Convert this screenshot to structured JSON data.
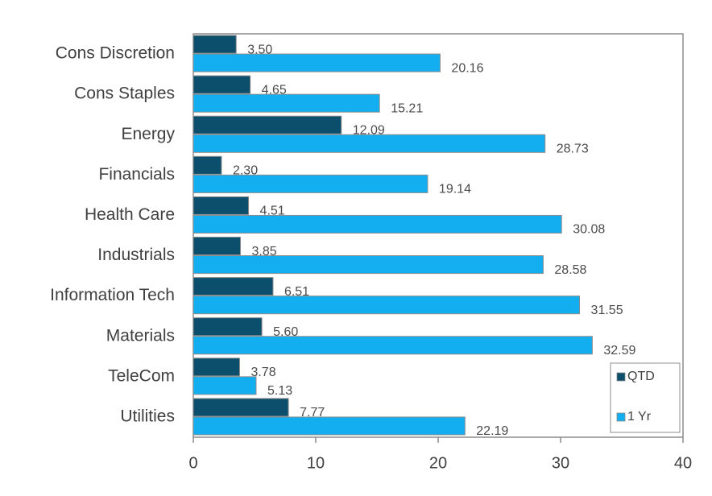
{
  "chart_data": {
    "type": "bar",
    "orientation": "horizontal",
    "categories": [
      "Cons Discretion",
      "Cons Staples",
      "Energy",
      "Financials",
      "Health Care",
      "Industrials",
      "Information Tech",
      "Materials",
      "TeleCom",
      "Utilities"
    ],
    "series": [
      {
        "name": "QTD",
        "color": "#0b4f6c",
        "values": [
          3.5,
          4.65,
          12.09,
          2.3,
          4.51,
          3.85,
          6.51,
          5.6,
          3.78,
          7.77
        ],
        "value_labels": [
          "3.50",
          "4.65",
          "12.09",
          "2.30",
          "4.51",
          "3.85",
          "6.51",
          "5.60",
          "3.78",
          "7.77"
        ]
      },
      {
        "name": "1 Yr",
        "color": "#12aef0",
        "values": [
          20.16,
          15.21,
          28.73,
          19.14,
          30.08,
          28.58,
          31.55,
          32.59,
          5.13,
          22.19
        ],
        "value_labels": [
          "20.16",
          "15.21",
          "28.73",
          "19.14",
          "30.08",
          "28.58",
          "31.55",
          "32.59",
          "5.13",
          "22.19"
        ]
      }
    ],
    "xlim": [
      0,
      40
    ],
    "xticks": [
      0,
      10,
      20,
      30,
      40
    ],
    "legend": "lower right"
  }
}
